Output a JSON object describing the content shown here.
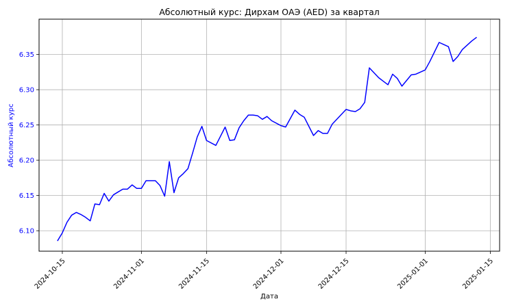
{
  "chart_data": {
    "type": "line",
    "title": "Абсолютный курс: Дирхам ОАЭ (AED) за квартал",
    "xlabel": "Дата",
    "ylabel": "Абсолютный курс",
    "grid": true,
    "x_tick_labels": [
      "2024-10-15",
      "2024-11-01",
      "2024-11-15",
      "2024-12-01",
      "2024-12-15",
      "2025-01-01",
      "2025-01-15"
    ],
    "y_tick_labels": [
      "6.10",
      "6.15",
      "6.20",
      "6.25",
      "6.30",
      "6.35"
    ],
    "xlim": [
      "2024-10-10",
      "2025-01-17"
    ],
    "ylim": [
      6.071,
      6.4
    ],
    "colors": {
      "line": "#0000ff",
      "ylabel": "#0000ff",
      "ytick": "#0000ff",
      "grid": "#b0b0b0",
      "axes": "#000000"
    },
    "series": [
      {
        "x": [
          "2024-10-14",
          "2024-10-15",
          "2024-10-16",
          "2024-10-17",
          "2024-10-18",
          "2024-10-19",
          "2024-10-20",
          "2024-10-21",
          "2024-10-22",
          "2024-10-23",
          "2024-10-24",
          "2024-10-25",
          "2024-10-26",
          "2024-10-27",
          "2024-10-28",
          "2024-10-29",
          "2024-10-30",
          "2024-10-31",
          "2024-11-01",
          "2024-11-02",
          "2024-11-03",
          "2024-11-04",
          "2024-11-05",
          "2024-11-06",
          "2024-11-07",
          "2024-11-08",
          "2024-11-09",
          "2024-11-10",
          "2024-11-11",
          "2024-11-12",
          "2024-11-13",
          "2024-11-14",
          "2024-11-15",
          "2024-11-17",
          "2024-11-18",
          "2024-11-19",
          "2024-11-20",
          "2024-11-21",
          "2024-11-22",
          "2024-11-23",
          "2024-11-24",
          "2024-11-25",
          "2024-11-26",
          "2024-11-27",
          "2024-11-28",
          "2024-11-29",
          "2024-12-01",
          "2024-12-02",
          "2024-12-04",
          "2024-12-05",
          "2024-12-06",
          "2024-12-08",
          "2024-12-09",
          "2024-12-10",
          "2024-12-11",
          "2024-12-12",
          "2024-12-15",
          "2024-12-16",
          "2024-12-17",
          "2024-12-18",
          "2024-12-19",
          "2024-12-20",
          "2024-12-22",
          "2024-12-23",
          "2024-12-24",
          "2024-12-25",
          "2024-12-26",
          "2024-12-27",
          "2024-12-29",
          "2024-12-30",
          "2025-01-01",
          "2025-01-02",
          "2025-01-04",
          "2025-01-05",
          "2025-01-06",
          "2025-01-07",
          "2025-01-08",
          "2025-01-09",
          "2025-01-11",
          "2025-01-12"
        ],
        "y": [
          6.086,
          6.097,
          6.112,
          6.122,
          6.126,
          6.123,
          6.119,
          6.114,
          6.138,
          6.137,
          6.153,
          6.142,
          6.151,
          6.155,
          6.159,
          6.159,
          6.165,
          6.16,
          6.16,
          6.171,
          6.171,
          6.171,
          6.164,
          6.149,
          6.198,
          6.154,
          6.175,
          6.181,
          6.188,
          6.21,
          6.233,
          6.248,
          6.228,
          6.221,
          6.234,
          6.247,
          6.228,
          6.229,
          6.246,
          6.256,
          6.264,
          6.264,
          6.263,
          6.258,
          6.262,
          6.256,
          6.249,
          6.247,
          6.271,
          6.265,
          6.261,
          6.235,
          6.242,
          6.238,
          6.238,
          6.251,
          6.272,
          6.27,
          6.269,
          6.273,
          6.282,
          6.331,
          6.317,
          6.312,
          6.307,
          6.322,
          6.316,
          6.305,
          6.321,
          6.322,
          6.328,
          6.34,
          6.367,
          6.364,
          6.361,
          6.34,
          6.347,
          6.357,
          6.369,
          6.374
        ]
      }
    ]
  }
}
